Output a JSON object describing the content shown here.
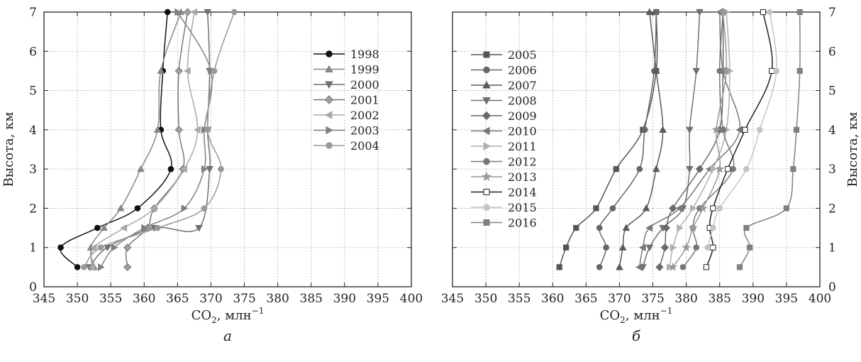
{
  "chart_data": [
    {
      "type": "line",
      "panel_label": "а",
      "xlabel": "CO",
      "xlabel_sub": "2",
      "xlabel_unit": ", млн",
      "xlabel_sup": "−1",
      "ylabel": "Высота, км",
      "xlim": [
        345,
        400
      ],
      "ylim": [
        0,
        7
      ],
      "xticks": [
        "345",
        "350",
        "355",
        "360",
        "365",
        "370",
        "375",
        "380",
        "385",
        "390",
        "395",
        "400"
      ],
      "yticks": [
        "0",
        "1",
        "2",
        "3",
        "4",
        "5",
        "6",
        "7"
      ],
      "grid": true,
      "legend_position": "top-right",
      "series": [
        {
          "name": "1998",
          "marker": "circle",
          "color": "#111111",
          "fill": "#111111",
          "points": [
            [
              350,
              0.5
            ],
            [
              347.5,
              1
            ],
            [
              353,
              1.5
            ],
            [
              359,
              2
            ],
            [
              364,
              3
            ],
            [
              362.5,
              4
            ],
            [
              362.8,
              5.5
            ],
            [
              363.5,
              7
            ]
          ]
        },
        {
          "name": "1999",
          "marker": "triangle-up",
          "color": "#888888",
          "fill": "#888888",
          "points": [
            [
              352.5,
              0.5
            ],
            [
              352,
              1
            ],
            [
              354,
              1.5
            ],
            [
              356.5,
              2
            ],
            [
              359.5,
              3
            ],
            [
              362,
              4
            ],
            [
              362.5,
              5.5
            ],
            [
              365.5,
              7
            ]
          ]
        },
        {
          "name": "2000",
          "marker": "triangle-down",
          "color": "#707070",
          "fill": "#707070",
          "points": [
            [
              351.8,
              0.5
            ],
            [
              354.5,
              1
            ],
            [
              361.5,
              1.5
            ],
            [
              368.2,
              1.5
            ],
            [
              369.8,
              3
            ],
            [
              369.5,
              4
            ],
            [
              369.8,
              5.5
            ],
            [
              369.5,
              7
            ]
          ]
        },
        {
          "name": "2001",
          "marker": "diamond",
          "color": "#777777",
          "fill": "#a0a0a0",
          "points": [
            [
              357.5,
              0.5
            ],
            [
              357.5,
              1
            ],
            [
              360.5,
              1.5
            ],
            [
              361.5,
              2
            ],
            [
              365.8,
              3
            ],
            [
              365.2,
              4
            ],
            [
              365.2,
              5.5
            ],
            [
              366.5,
              7
            ]
          ]
        },
        {
          "name": "2002",
          "marker": "triangle-left",
          "color": "#a8a8a8",
          "fill": "#a8a8a8",
          "points": [
            [
              352.2,
              0.5
            ],
            [
              352.5,
              1
            ],
            [
              357,
              1.5
            ],
            [
              361.5,
              2
            ],
            [
              366,
              3
            ],
            [
              368,
              4
            ],
            [
              366.5,
              5.5
            ],
            [
              367.5,
              7
            ]
          ]
        },
        {
          "name": "2003",
          "marker": "triangle-right",
          "color": "#808080",
          "fill": "#808080",
          "points": [
            [
              353.5,
              0.5
            ],
            [
              355.5,
              1
            ],
            [
              360,
              1.5
            ],
            [
              366,
              2
            ],
            [
              369,
              3
            ],
            [
              369,
              4
            ],
            [
              370,
              5.5
            ],
            [
              365,
              7
            ]
          ]
        },
        {
          "name": "2004",
          "marker": "circle",
          "color": "#999999",
          "fill": "#999999",
          "points": [
            [
              351,
              0.5
            ],
            [
              353.5,
              1
            ],
            [
              362,
              1.5
            ],
            [
              369,
              2
            ],
            [
              371.5,
              3
            ],
            [
              369.5,
              4
            ],
            [
              370.5,
              5.5
            ],
            [
              373.5,
              7
            ]
          ]
        }
      ]
    },
    {
      "type": "line",
      "panel_label": "б",
      "xlabel": "CO",
      "xlabel_sub": "2",
      "xlabel_unit": ", млн",
      "xlabel_sup": "−1",
      "ylabel": "Высота, км",
      "xlim": [
        345,
        400
      ],
      "ylim": [
        0,
        7
      ],
      "xticks": [
        "345",
        "350",
        "355",
        "360",
        "365",
        "370",
        "375",
        "380",
        "385",
        "390",
        "395",
        "400"
      ],
      "yticks": [
        "0",
        "1",
        "2",
        "3",
        "4",
        "5",
        "6",
        "7"
      ],
      "grid": true,
      "legend_position": "top-left",
      "series": [
        {
          "name": "2005",
          "marker": "square",
          "color": "#555555",
          "fill": "#555555",
          "points": [
            [
              361,
              0.5
            ],
            [
              362,
              1
            ],
            [
              363.5,
              1.5
            ],
            [
              366.5,
              2
            ],
            [
              369.5,
              3
            ],
            [
              373.5,
              4
            ],
            [
              375.5,
              5.5
            ],
            [
              375.5,
              7
            ]
          ]
        },
        {
          "name": "2006",
          "marker": "circle",
          "color": "#666666",
          "fill": "#666666",
          "points": [
            [
              367,
              0.5
            ],
            [
              368,
              1
            ],
            [
              367,
              1.5
            ],
            [
              369,
              2
            ],
            [
              373,
              3
            ],
            [
              373.8,
              4
            ],
            [
              375.2,
              5.5
            ],
            [
              375.5,
              7
            ]
          ]
        },
        {
          "name": "2007",
          "marker": "triangle-up",
          "color": "#5a5a5a",
          "fill": "#5a5a5a",
          "points": [
            [
              370,
              0.5
            ],
            [
              370.5,
              1
            ],
            [
              371,
              1.5
            ],
            [
              374,
              2
            ],
            [
              375.5,
              3
            ],
            [
              376.5,
              4
            ],
            [
              375.5,
              5.5
            ],
            [
              374.5,
              7
            ]
          ]
        },
        {
          "name": "2008",
          "marker": "triangle-down",
          "color": "#707070",
          "fill": "#707070",
          "points": [
            [
              373.5,
              0.5
            ],
            [
              374.5,
              1
            ],
            [
              376.5,
              1.5
            ],
            [
              379.5,
              2
            ],
            [
              380.5,
              3
            ],
            [
              380.5,
              4
            ],
            [
              381.5,
              5.5
            ],
            [
              382,
              7
            ]
          ]
        },
        {
          "name": "2009",
          "marker": "diamond",
          "color": "#6a6a6a",
          "fill": "#6a6a6a",
          "points": [
            [
              376,
              0.5
            ],
            [
              376.8,
              1
            ],
            [
              377,
              1.5
            ],
            [
              378,
              2
            ],
            [
              382,
              3
            ],
            [
              385,
              4
            ],
            [
              385.5,
              5.5
            ],
            [
              385.5,
              7
            ]
          ]
        },
        {
          "name": "2010",
          "marker": "triangle-left",
          "color": "#777777",
          "fill": "#777777",
          "points": [
            [
              373,
              0.5
            ],
            [
              373.5,
              1
            ],
            [
              374.5,
              1.5
            ],
            [
              379,
              2
            ],
            [
              383.5,
              3
            ],
            [
              388,
              4
            ],
            [
              385.5,
              5.5
            ],
            [
              385,
              7
            ]
          ]
        },
        {
          "name": "2011",
          "marker": "triangle-right",
          "color": "#b0b0b0",
          "fill": "#b0b0b0",
          "points": [
            [
              377.5,
              0.5
            ],
            [
              378,
              1
            ],
            [
              379,
              1.5
            ],
            [
              381,
              2
            ],
            [
              384,
              3
            ],
            [
              386,
              4
            ],
            [
              386.5,
              5.5
            ],
            [
              386,
              7
            ]
          ]
        },
        {
          "name": "2012",
          "marker": "circle",
          "color": "#777777",
          "fill": "#777777",
          "points": [
            [
              379.5,
              0.5
            ],
            [
              381.5,
              1
            ],
            [
              381,
              1.5
            ],
            [
              382,
              2
            ],
            [
              387,
              3
            ],
            [
              385.5,
              4
            ],
            [
              385,
              5.5
            ],
            [
              385.5,
              7
            ]
          ]
        },
        {
          "name": "2013",
          "marker": "star",
          "color": "#999999",
          "fill": "#999999",
          "points": [
            [
              378,
              0.5
            ],
            [
              380,
              1
            ],
            [
              381,
              1.5
            ],
            [
              382.5,
              2
            ],
            [
              385,
              3
            ],
            [
              384.5,
              4
            ],
            [
              386,
              5.5
            ],
            [
              385.5,
              7
            ]
          ]
        },
        {
          "name": "2014",
          "marker": "square-open",
          "color": "#222222",
          "fill": "#ffffff",
          "points": [
            [
              383,
              0.5
            ],
            [
              384,
              1
            ],
            [
              383.5,
              1.5
            ],
            [
              384,
              2
            ],
            [
              386.2,
              3
            ],
            [
              388.8,
              4
            ],
            [
              392.8,
              5.5
            ],
            [
              391.5,
              7
            ]
          ]
        },
        {
          "name": "2015",
          "marker": "circle",
          "color": "#c4c4c4",
          "fill": "#c4c4c4",
          "points": [
            [
              383.2,
              1
            ],
            [
              384,
              1.5
            ],
            [
              385,
              2
            ],
            [
              389,
              3
            ],
            [
              391,
              4
            ],
            [
              393.5,
              5.5
            ],
            [
              392.5,
              7
            ]
          ]
        },
        {
          "name": "2016",
          "marker": "square",
          "color": "#808080",
          "fill": "#808080",
          "points": [
            [
              388,
              0.5
            ],
            [
              389.5,
              1
            ],
            [
              389,
              1.5
            ],
            [
              395,
              2
            ],
            [
              396,
              3
            ],
            [
              396.5,
              4
            ],
            [
              397,
              5.5
            ],
            [
              397,
              7
            ]
          ]
        }
      ]
    }
  ]
}
